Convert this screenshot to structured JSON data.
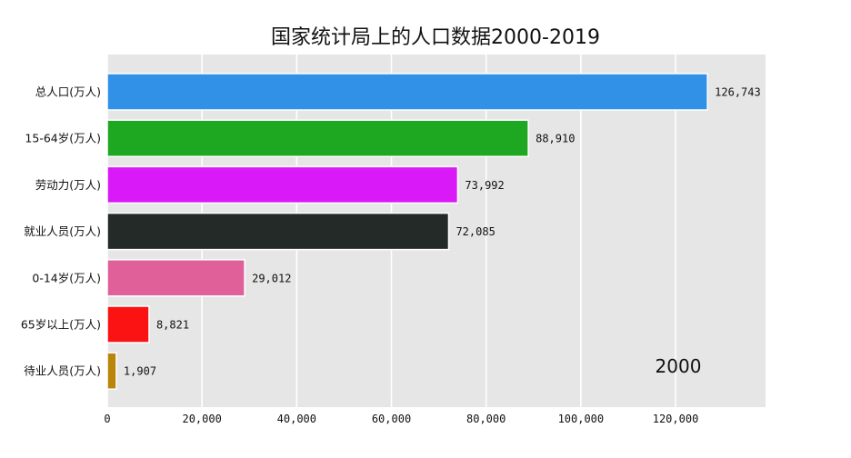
{
  "chart_data": {
    "type": "bar",
    "orientation": "horizontal",
    "title": "国家统计局上的人口数据2000-2019",
    "year": "2000",
    "categories": [
      "总人口(万人)",
      "15-64岁(万人)",
      "劳动力(万人)",
      "就业人员(万人)",
      "0-14岁(万人)",
      "65岁以上(万人)",
      "待业人员(万人)"
    ],
    "values": [
      126743,
      88910,
      73992,
      72085,
      29012,
      8821,
      1907
    ],
    "value_labels": [
      "126,743",
      "88,910",
      "73,992",
      "72,085",
      "29,012",
      "8,821",
      "1,907"
    ],
    "colors": [
      "#3191e6",
      "#1ea720",
      "#da19f9",
      "#232a28",
      "#e0609a",
      "#fb1212",
      "#b8860b"
    ],
    "xlim": [
      0,
      139000
    ],
    "xticks": [
      0,
      20000,
      40000,
      60000,
      80000,
      100000,
      120000
    ],
    "xtick_labels": [
      "0",
      "20,000",
      "40,000",
      "60,000",
      "80,000",
      "100,000",
      "120,000"
    ],
    "grid": true,
    "background": "#e6e6e6"
  }
}
